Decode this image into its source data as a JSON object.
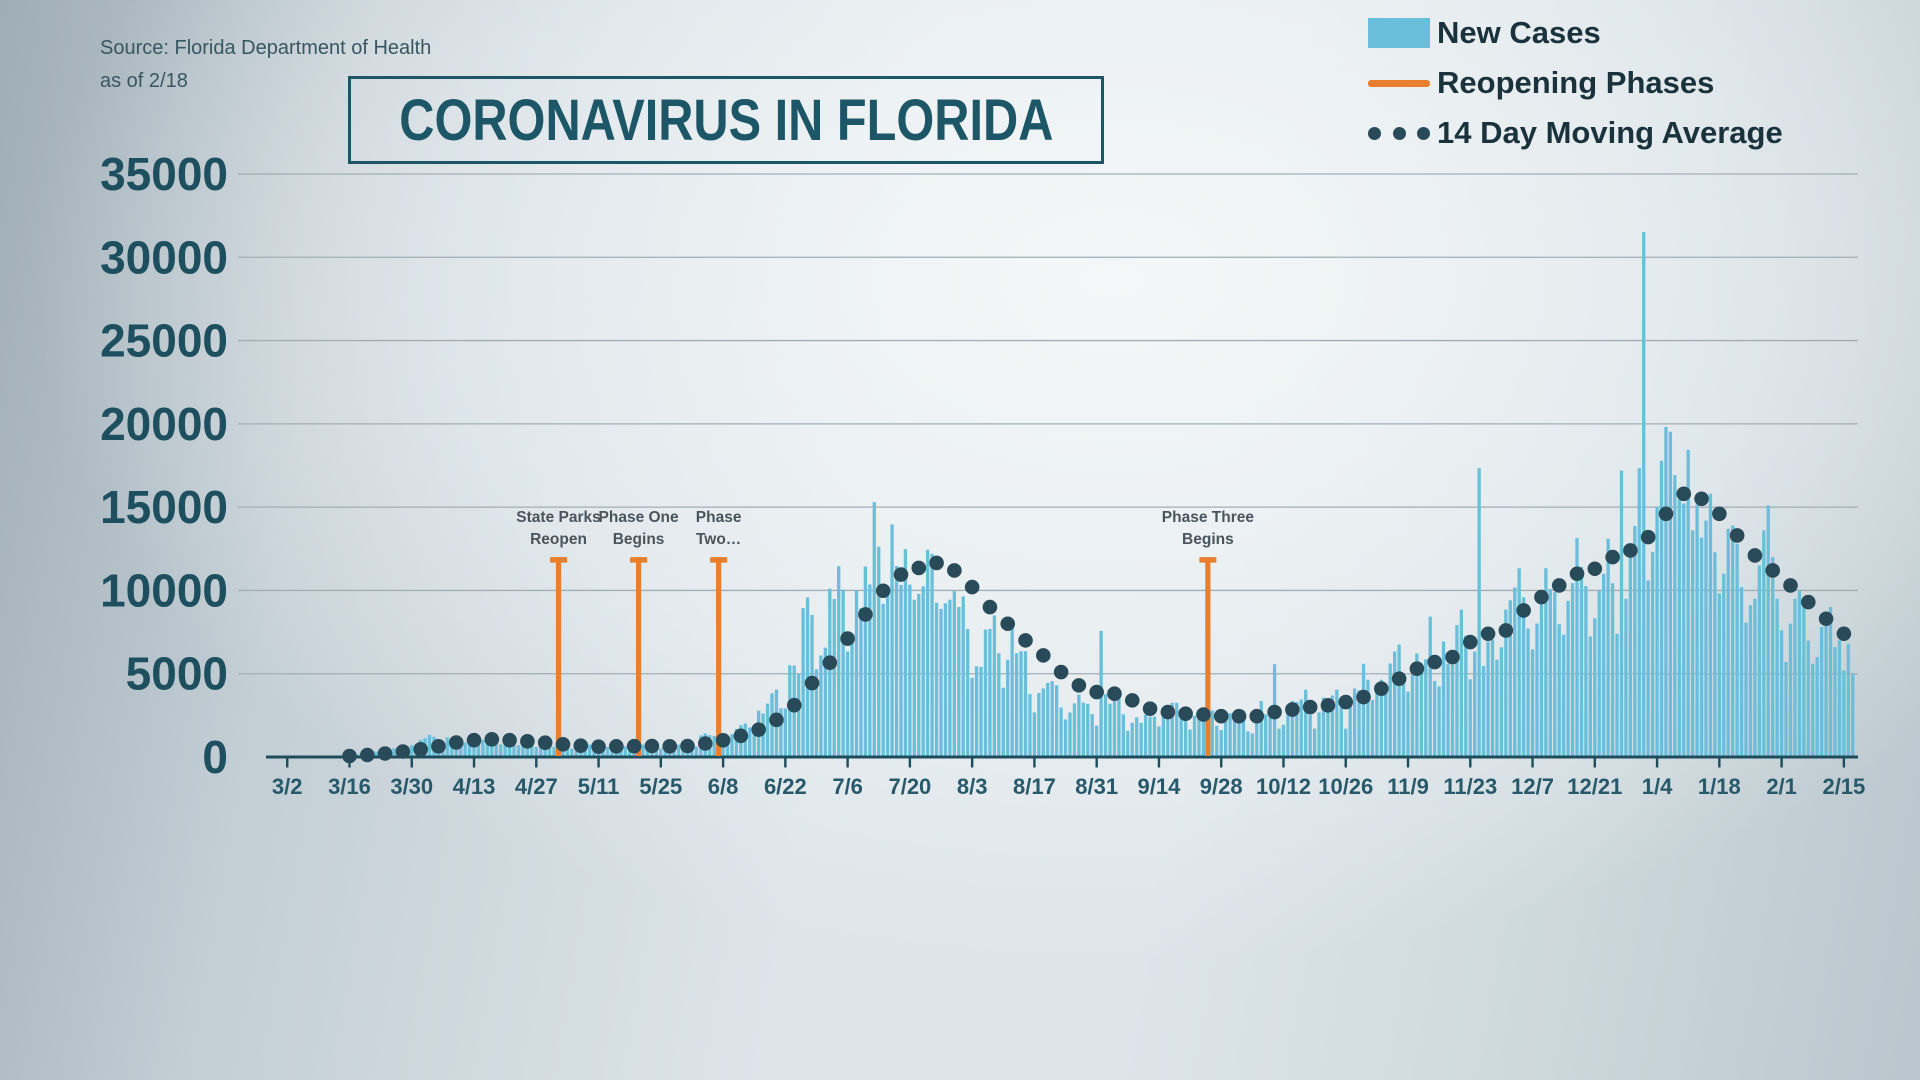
{
  "source": {
    "line1": "Source: Florida Department of Health",
    "line2": "as of 2/18"
  },
  "title": "CORONAVIRUS IN FLORIDA",
  "legend": {
    "position": "top-right",
    "items": [
      {
        "label": "New Cases",
        "marker": "bar-swatch-icon",
        "color": "#69bfda"
      },
      {
        "label": "Reopening Phases",
        "marker": "line-swatch-icon",
        "color": "#e87f2e"
      },
      {
        "label": "14 Day Moving Average",
        "marker": "dots-swatch-icon",
        "color": "#294b59"
      }
    ]
  },
  "chart_data": {
    "type": "bar",
    "title": "CORONAVIRUS IN FLORIDA",
    "x_start_date": "3/2",
    "x_end_date": "2/17",
    "x_tick_labels": [
      "3/2",
      "3/16",
      "3/30",
      "4/13",
      "4/27",
      "5/11",
      "5/25",
      "6/8",
      "6/22",
      "7/6",
      "7/20",
      "8/3",
      "8/17",
      "8/31",
      "9/14",
      "9/28",
      "10/12",
      "10/26",
      "11/9",
      "11/23",
      "12/7",
      "12/21",
      "1/4",
      "1/18",
      "2/1",
      "2/15"
    ],
    "x_tick_interval_days": 14,
    "ylabel": "",
    "xlabel": "",
    "ylim": [
      0,
      35000
    ],
    "y_ticks": [
      0,
      5000,
      10000,
      15000,
      20000,
      25000,
      30000,
      35000
    ],
    "grid": "horizontal",
    "colors": {
      "bar": "#69bfda",
      "dot": "#294b59",
      "phase": "#e87f2e",
      "axis": "#1d4d5c",
      "grid": "#a2aeb4",
      "x_label": "#27596b",
      "y_label": "#1d4f5f",
      "annotation": "#4a545c"
    },
    "new_cases_daily": [
      2,
      3,
      4,
      3,
      6,
      8,
      10,
      14,
      19,
      28,
      35,
      46,
      60,
      78,
      99,
      126,
      155,
      188,
      225,
      272,
      325,
      395,
      430,
      478,
      528,
      560,
      598,
      648,
      702,
      728,
      1032,
      1128,
      1330,
      1208,
      1079,
      948,
      1180,
      1098,
      1208,
      928,
      862,
      779,
      1150,
      902,
      1021,
      938,
      879,
      821,
      758,
      1049,
      833,
      748,
      712,
      679,
      641,
      719,
      602,
      659,
      583,
      639,
      618,
      721,
      579,
      541,
      502,
      568,
      612,
      678,
      739,
      572,
      482,
      519,
      602,
      801,
      819,
      759,
      641,
      512,
      538,
      581,
      739,
      762,
      678,
      602,
      521,
      482,
      561,
      679,
      741,
      819,
      879,
      667,
      617,
      1301,
      1413,
      1309,
      1268,
      1096,
      966,
      1092,
      1371,
      1689,
      1902,
      2012,
      1772,
      1662,
      2783,
      2610,
      3207,
      3822,
      4049,
      2926,
      2919,
      5508,
      5497,
      5004,
      8942,
      9585,
      8530,
      5266,
      6093,
      6563,
      10109,
      9488,
      11458,
      10059,
      6336,
      7347,
      9989,
      8935,
      11433,
      10360,
      15300,
      12624,
      9194,
      10181,
      13965,
      11466,
      10328,
      12478,
      10347,
      9440,
      9785,
      10249,
      12444,
      12199,
      9259,
      8892,
      9230,
      9446,
      9956,
      9007,
      9642,
      7686,
      4752,
      5446,
      5409,
      7650,
      7686,
      8502,
      6229,
      4155,
      5831,
      8109,
      6236,
      6352,
      6352,
      3779,
      2678,
      3838,
      4115,
      4452,
      4555,
      4311,
      2974,
      2258,
      2673,
      3220,
      3744,
      3269,
      3197,
      2583,
      1885,
      7569,
      3773,
      3198,
      3571,
      3838,
      2564,
      1575,
      2056,
      2381,
      2056,
      2541,
      2423,
      2423,
      1838,
      2619,
      2355,
      3255,
      3250,
      2521,
      2521,
      1644,
      2470,
      2590,
      2541,
      2847,
      2795,
      1882,
      1611,
      2555,
      2628,
      2628,
      2660,
      2793,
      1533,
      1415,
      2283,
      3356,
      2566,
      2908,
      5570,
      1707,
      1933,
      2725,
      3356,
      3296,
      3449,
      4044,
      2539,
      1707,
      2678,
      3568,
      3356,
      3689,
      4041,
      2986,
      1703,
      3377,
      4115,
      4008,
      5592,
      4637,
      3428,
      4237,
      4637,
      4165,
      5607,
      6331,
      6754,
      4977,
      3924,
      4977,
      6210,
      5607,
      5867,
      8430,
      4564,
      4237,
      6933,
      5607,
      5558,
      7925,
      8847,
      7283,
      4663,
      6331,
      17344,
      5460,
      6933,
      7059,
      5838,
      6587,
      8847,
      9411,
      10177,
      11335,
      9587,
      7713,
      6459,
      8010,
      9419,
      11335,
      10080,
      9898,
      7978,
      7341,
      9377,
      10434,
      13148,
      11419,
      10265,
      7237,
      8331,
      9977,
      11000,
      13099,
      10434,
      7391,
      17192,
      9498,
      12498,
      13871,
      17342,
      31518,
      10603,
      12313,
      15003,
      17783,
      19816,
      19530,
      16924,
      15468,
      15219,
      18442,
      13602,
      15148,
      13166,
      14198,
      15803,
      12298,
      9816,
      11003,
      13702,
      13898,
      12798,
      10199,
      8061,
      9119,
      9498,
      11498,
      13602,
      15103,
      11998,
      9502,
      7602,
      5703,
      8003,
      9498,
      10006,
      9541,
      6998,
      5598,
      6003,
      7803,
      8198,
      9003,
      6598,
      6998,
      5203,
      6803,
      4998
    ],
    "moving_average": {
      "name": "14 Day Moving Average",
      "start_day_index": 14,
      "step_days": 4,
      "values": [
        60,
        120,
        210,
        330,
        460,
        640,
        870,
        1010,
        1060,
        1010,
        940,
        860,
        760,
        680,
        620,
        640,
        650,
        660,
        640,
        660,
        810,
        1000,
        1270,
        1640,
        2230,
        3110,
        4440,
        5660,
        7110,
        8560,
        9980,
        10950,
        11350,
        11650,
        11200,
        10200,
        9000,
        8000,
        7000,
        6100,
        5100,
        4300,
        3900,
        3800,
        3400,
        2900,
        2700,
        2600,
        2550,
        2450,
        2450,
        2450,
        2700,
        2850,
        3000,
        3100,
        3300,
        3600,
        4100,
        4700,
        5300,
        5700,
        6000,
        6900,
        7400,
        7600,
        8800,
        9600,
        10300,
        11000,
        11300,
        12000,
        12400,
        13200,
        14600,
        15800,
        15500,
        14600,
        13300,
        12100,
        11200,
        10300,
        9300,
        8300,
        7400
      ]
    },
    "reopening_phases": {
      "name": "Reopening Phases",
      "marker_top_value": 12000,
      "events": [
        {
          "day_index": 61,
          "date": "5/2",
          "label_line1": "State Parks",
          "label_line2": "Reopen"
        },
        {
          "day_index": 79,
          "date": "5/20",
          "label_line1": "Phase One",
          "label_line2": "Begins"
        },
        {
          "day_index": 97,
          "date": "6/7",
          "label_line1": "Phase",
          "label_line2": "Two…"
        },
        {
          "day_index": 207,
          "date": "9/25",
          "label_line1": "Phase Three",
          "label_line2": "Begins"
        }
      ]
    }
  }
}
